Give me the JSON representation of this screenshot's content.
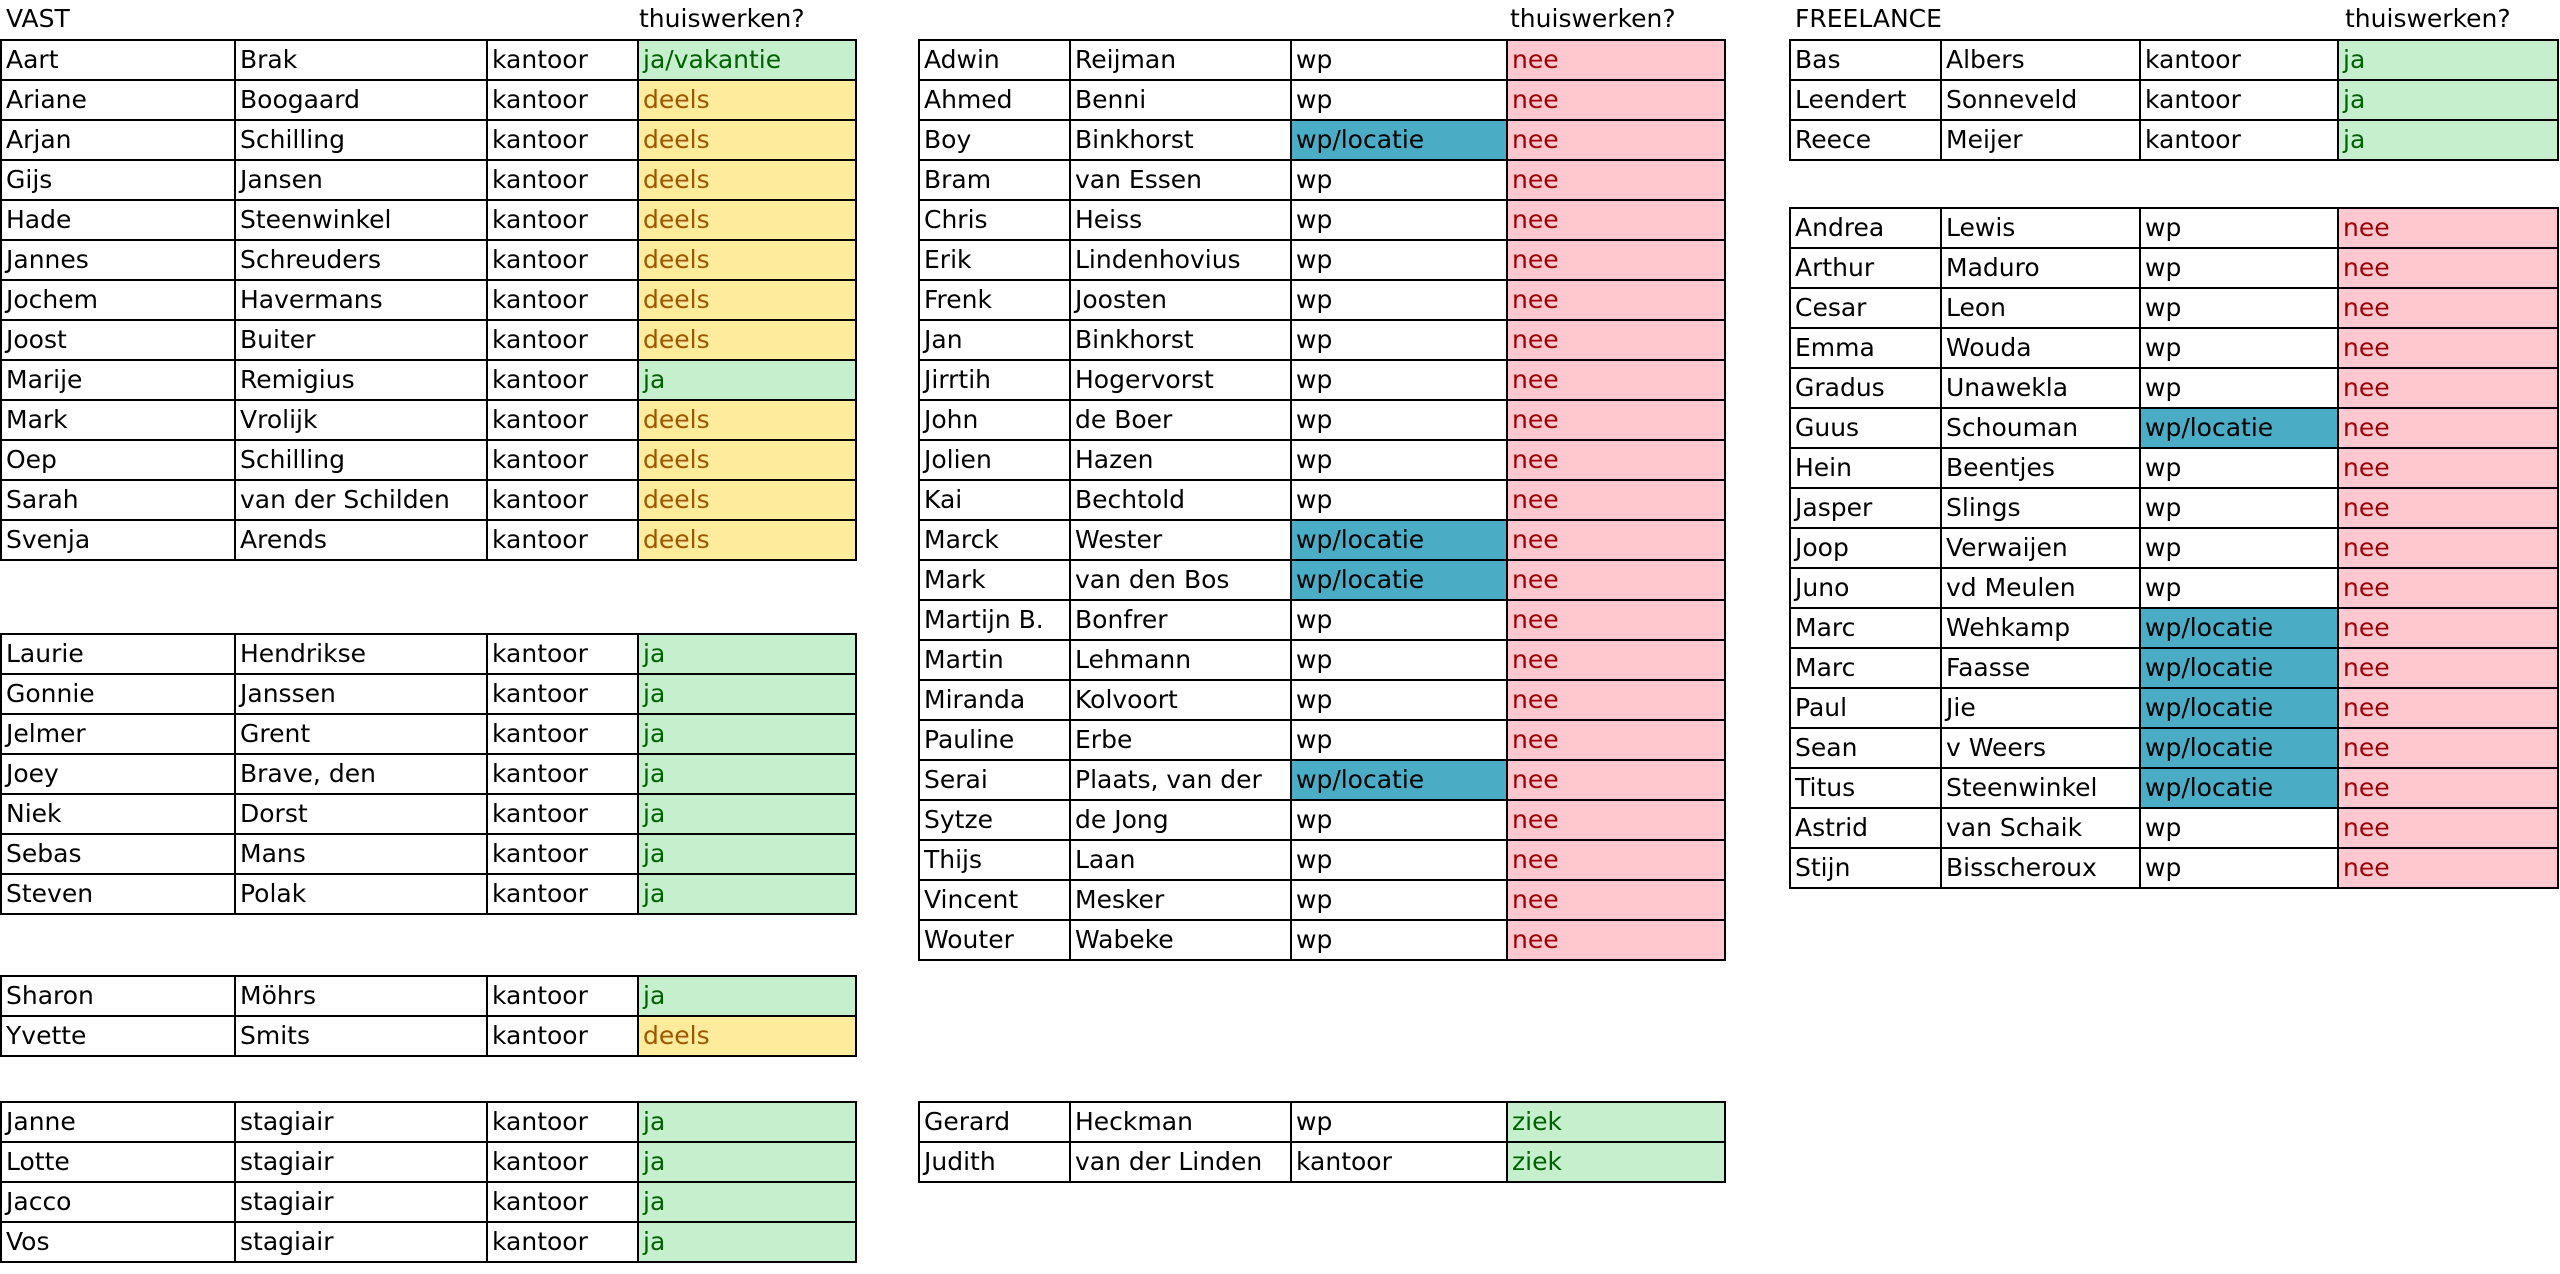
{
  "headers": {
    "vast": "VAST",
    "vast_q": "thuiswerken?",
    "mid_q": "thuiswerken?",
    "freelance": "FREELANCE",
    "freelance_q": "thuiswerken?"
  },
  "status_colors": {
    "ja": "#c6efce",
    "deels": "#ffeb9c",
    "nee": "#ffc7ce",
    "wp_locatie": "#4bacc6"
  },
  "vast_1": [
    [
      "Aart",
      "Brak",
      "kantoor",
      "ja/vakantie"
    ],
    [
      "Ariane",
      "Boogaard",
      "kantoor",
      "deels"
    ],
    [
      "Arjan",
      "Schilling",
      "kantoor",
      "deels"
    ],
    [
      "Gijs",
      "Jansen",
      "kantoor",
      "deels"
    ],
    [
      "Hade",
      "Steenwinkel",
      "kantoor",
      "deels"
    ],
    [
      "Jannes",
      "Schreuders",
      "kantoor",
      "deels"
    ],
    [
      "Jochem",
      "Havermans",
      "kantoor",
      "deels"
    ],
    [
      "Joost",
      "Buiter",
      "kantoor",
      "deels"
    ],
    [
      "Marije",
      "Remigius",
      "kantoor",
      "ja"
    ],
    [
      "Mark",
      "Vrolijk",
      "kantoor",
      "deels"
    ],
    [
      "Oep",
      "Schilling",
      "kantoor",
      "deels"
    ],
    [
      "Sarah",
      "van der  Schilden",
      "kantoor",
      "deels"
    ],
    [
      "Svenja",
      "Arends",
      "kantoor",
      "deels"
    ]
  ],
  "vast_2": [
    [
      "Laurie",
      "Hendrikse",
      "kantoor",
      "ja"
    ],
    [
      "Gonnie",
      "Janssen",
      "kantoor",
      "ja"
    ],
    [
      "Jelmer",
      "Grent",
      "kantoor",
      "ja"
    ],
    [
      "Joey",
      "Brave, den",
      "kantoor",
      "ja"
    ],
    [
      "Niek",
      "Dorst",
      "kantoor",
      "ja"
    ],
    [
      "Sebas",
      "Mans",
      "kantoor",
      "ja"
    ],
    [
      "Steven",
      "Polak",
      "kantoor",
      "ja"
    ]
  ],
  "vast_3": [
    [
      "Sharon",
      "Möhrs",
      "kantoor",
      "ja"
    ],
    [
      "Yvette",
      "Smits",
      "kantoor",
      "deels"
    ]
  ],
  "vast_4": [
    [
      "Janne",
      "stagiair",
      "kantoor",
      "ja"
    ],
    [
      "Lotte",
      "stagiair",
      "kantoor",
      "ja"
    ],
    [
      "Jacco",
      "stagiair",
      "kantoor",
      "ja"
    ],
    [
      "Vos",
      "stagiair",
      "kantoor",
      "ja"
    ]
  ],
  "mid_1": [
    [
      "Adwin",
      "Reijman",
      "wp",
      "nee"
    ],
    [
      "Ahmed",
      "Benni",
      "wp",
      "nee"
    ],
    [
      "Boy",
      "Binkhorst",
      "wp/locatie",
      "nee"
    ],
    [
      "Bram",
      "van Essen",
      "wp",
      "nee"
    ],
    [
      "Chris",
      "Heiss",
      "wp",
      "nee"
    ],
    [
      "Erik",
      "Lindenhovius",
      "wp",
      "nee"
    ],
    [
      "Frenk",
      "Joosten",
      "wp",
      "nee"
    ],
    [
      "Jan",
      "Binkhorst",
      "wp",
      "nee"
    ],
    [
      "Jirrtih",
      "Hogervorst",
      "wp",
      "nee"
    ],
    [
      "John",
      "de Boer",
      "wp",
      "nee"
    ],
    [
      "Jolien",
      "Hazen",
      "wp",
      "nee"
    ],
    [
      "Kai",
      "Bechtold",
      "wp",
      "nee"
    ],
    [
      "Marck",
      "Wester",
      "wp/locatie",
      "nee"
    ],
    [
      "Mark",
      "van den Bos",
      "wp/locatie",
      "nee"
    ],
    [
      "Martijn B.",
      "Bonfrer",
      "wp",
      "nee"
    ],
    [
      "Martin",
      "Lehmann",
      "wp",
      "nee"
    ],
    [
      "Miranda",
      "Kolvoort",
      "wp",
      "nee"
    ],
    [
      "Pauline",
      "Erbe",
      "wp",
      "nee"
    ],
    [
      "Serai",
      "Plaats, van der",
      "wp/locatie",
      "nee"
    ],
    [
      "Sytze",
      "de Jong",
      "wp",
      "nee"
    ],
    [
      "Thijs",
      "Laan",
      "wp",
      "nee"
    ],
    [
      "Vincent",
      "Mesker",
      "wp",
      "nee"
    ],
    [
      "Wouter",
      "Wabeke",
      "wp",
      "nee"
    ]
  ],
  "mid_2": [
    [
      "Gerard",
      "Heckman",
      "wp",
      "ziek"
    ],
    [
      "Judith",
      "van der Linden",
      "kantoor",
      "ziek"
    ]
  ],
  "free_1": [
    [
      "Bas",
      "Albers",
      "kantoor",
      "ja"
    ],
    [
      "Leendert",
      "Sonneveld",
      "kantoor",
      "ja"
    ],
    [
      "Reece",
      "Meijer",
      "kantoor",
      "ja"
    ]
  ],
  "free_2": [
    [
      "Andrea",
      "Lewis",
      "wp",
      "nee"
    ],
    [
      "Arthur",
      "Maduro",
      "wp",
      "nee"
    ],
    [
      "Cesar",
      "Leon",
      "wp",
      "nee"
    ],
    [
      "Emma",
      "Wouda",
      "wp",
      "nee"
    ],
    [
      "Gradus",
      "Unawekla",
      "wp",
      "nee"
    ],
    [
      "Guus",
      "Schouman",
      "wp/locatie",
      "nee"
    ],
    [
      "Hein",
      "Beentjes",
      "wp",
      "nee"
    ],
    [
      "Jasper",
      "Slings",
      "wp",
      "nee"
    ],
    [
      "Joop",
      "Verwaijen",
      "wp",
      "nee"
    ],
    [
      "Juno",
      "vd Meulen",
      "wp",
      "nee"
    ],
    [
      "Marc",
      "Wehkamp",
      "wp/locatie",
      "nee"
    ],
    [
      "Marc",
      "Faasse",
      "wp/locatie",
      "nee"
    ],
    [
      "Paul",
      "Jie",
      "wp/locatie",
      "nee"
    ],
    [
      "Sean",
      "v Weers",
      "wp/locatie",
      "nee"
    ],
    [
      "Titus",
      "Steenwinkel",
      "wp/locatie",
      "nee"
    ],
    [
      "Astrid",
      "van Schaik",
      "wp",
      "nee"
    ],
    [
      "Stijn",
      "Bisscheroux",
      "wp",
      "nee"
    ]
  ]
}
